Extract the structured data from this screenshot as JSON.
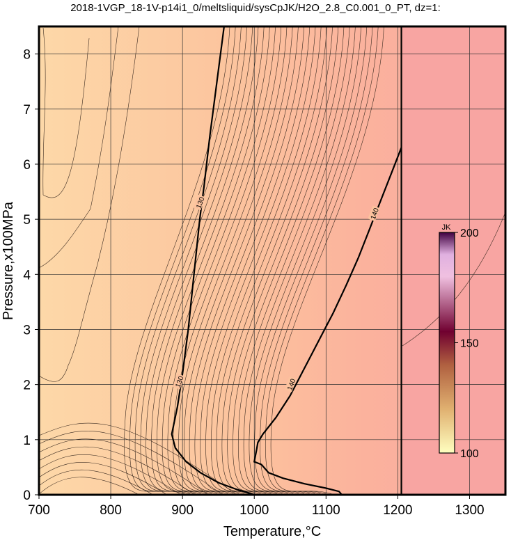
{
  "title": "2018-1VGP_18-1V-p14i1_0/meltsliquid/sysCpJK/H2O_2.8_C0.001_0_PT, dz=1:",
  "chart_data": {
    "type": "heatmap",
    "xlabel": "Temperature,°C",
    "ylabel": "Pressure,x100MPa",
    "xlim": [
      700,
      1350
    ],
    "ylim": [
      0,
      8.5
    ],
    "xticks": [
      700,
      800,
      900,
      1000,
      1100,
      1200,
      1300
    ],
    "yticks": [
      0,
      1,
      2,
      3,
      4,
      5,
      6,
      7,
      8
    ],
    "grid": true,
    "colorbar": {
      "unit": "JK",
      "min": 100,
      "max": 200,
      "ticks": [
        100,
        150,
        200
      ],
      "position": "right-center"
    },
    "phase_boundary_T": 1205,
    "contours": [
      {
        "level": 130,
        "label": "130",
        "points": [
          [
            958,
            8.5
          ],
          [
            948,
            7.5
          ],
          [
            938,
            6.5
          ],
          [
            930,
            5.6
          ],
          [
            924,
            5.0
          ],
          [
            916,
            4.0
          ],
          [
            908,
            3.0
          ],
          [
            900,
            2.2
          ],
          [
            893,
            1.6
          ],
          [
            885,
            1.1
          ],
          [
            890,
            0.85
          ],
          [
            905,
            0.6
          ],
          [
            925,
            0.4
          ],
          [
            950,
            0.22
          ],
          [
            975,
            0.1
          ],
          [
            1000,
            0.0
          ]
        ],
        "label_positions": [
          [
            925,
            5.3
          ],
          [
            896,
            2.05
          ]
        ]
      },
      {
        "level": 140,
        "label": "140",
        "points": [
          [
            1205,
            6.3
          ],
          [
            1190,
            5.8
          ],
          [
            1175,
            5.3
          ],
          [
            1160,
            4.8
          ],
          [
            1145,
            4.3
          ],
          [
            1128,
            3.8
          ],
          [
            1110,
            3.3
          ],
          [
            1090,
            2.8
          ],
          [
            1070,
            2.3
          ],
          [
            1050,
            1.8
          ],
          [
            1030,
            1.4
          ],
          [
            1012,
            1.1
          ],
          [
            1005,
            0.95
          ],
          [
            1003,
            0.8
          ],
          [
            1000,
            0.6
          ],
          [
            1010,
            0.55
          ],
          [
            1020,
            0.4
          ],
          [
            1040,
            0.3
          ],
          [
            1070,
            0.2
          ],
          [
            1100,
            0.12
          ],
          [
            1118,
            0.06
          ],
          [
            1122,
            0.0
          ]
        ],
        "label_positions": [
          [
            1168,
            5.1
          ],
          [
            1052,
            2.0
          ]
        ]
      }
    ]
  }
}
